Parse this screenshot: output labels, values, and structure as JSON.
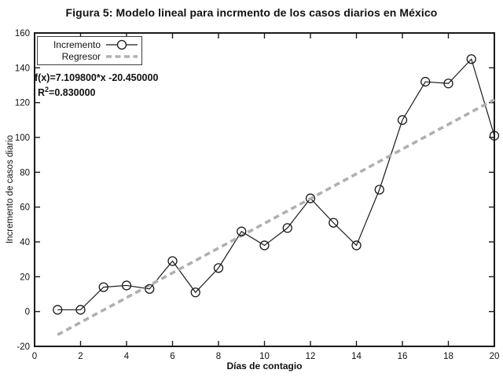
{
  "title": "Figura 5: Modelo lineal para incrmento de los casos diarios en México",
  "chart_data": {
    "type": "line",
    "title": "Figura 5: Modelo lineal para incrmento de los casos diarios en México",
    "xlabel": "Días de contagio",
    "ylabel": "Incremento de casos diario",
    "xlim": [
      0,
      20
    ],
    "ylim": [
      -20,
      160
    ],
    "xticks": [
      0,
      2,
      4,
      6,
      8,
      10,
      12,
      14,
      16,
      18,
      20
    ],
    "yticks": [
      -20,
      0,
      20,
      40,
      60,
      80,
      100,
      120,
      140,
      160
    ],
    "grid": false,
    "legend_position": "top-left",
    "series": [
      {
        "name": "Incremento",
        "style": "solid-line-open-circle-markers",
        "color": "#1a1a1a",
        "x": [
          1,
          2,
          3,
          4,
          5,
          6,
          7,
          8,
          9,
          10,
          11,
          12,
          13,
          14,
          15,
          16,
          17,
          18,
          19,
          20
        ],
        "y": [
          1,
          1,
          14,
          15,
          13,
          29,
          11,
          25,
          46,
          38,
          48,
          65,
          51,
          38,
          70,
          110,
          132,
          131,
          145,
          101
        ]
      },
      {
        "name": "Regresor",
        "style": "dashed-line",
        "color": "#b0b0b0",
        "equation": {
          "slope": 7.1098,
          "intercept": -20.45
        },
        "x": [
          1,
          20
        ],
        "y": [
          -13.34,
          121.75
        ]
      }
    ],
    "annotation": {
      "fx": "f(x)=7.109800*x -20.450000",
      "r2_base": "R",
      "r2_sup": "2",
      "r2_value": "=0.830000"
    }
  }
}
